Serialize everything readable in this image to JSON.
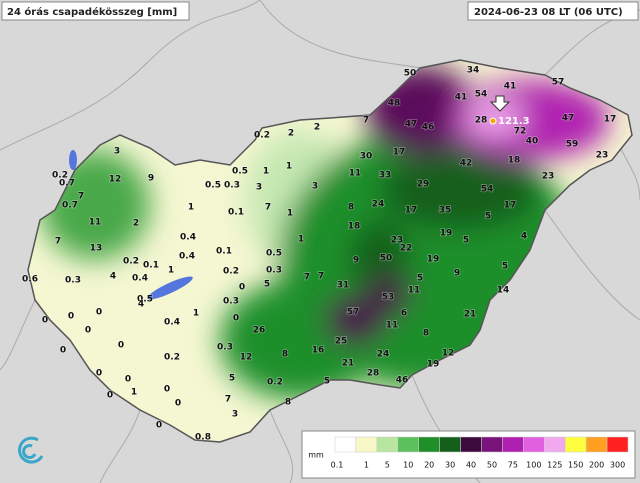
{
  "header": {
    "title": "24 órás csapadékösszeg [mm]",
    "date": "2024-06-23 08 LT (06 UTC)"
  },
  "max_value": "121.3",
  "legend": {
    "unit": "mm",
    "labels": [
      "0.1",
      "1",
      "5",
      "10",
      "20",
      "30",
      "40",
      "50",
      "75",
      "100",
      "125",
      "150",
      "200",
      "300"
    ]
  },
  "stations": [
    "50",
    "34",
    "54",
    "41",
    "57",
    "41",
    "48",
    "47",
    "46",
    "28",
    "47",
    "17",
    "72",
    "40",
    "59",
    "23",
    "42",
    "18",
    "54",
    "23",
    "29",
    "17",
    "30",
    "33",
    "11",
    "7",
    "17",
    "35",
    "5",
    "17",
    "24",
    "8",
    "18",
    "23",
    "22",
    "19",
    "5",
    "4",
    "9",
    "50",
    "19",
    "5",
    "9",
    "5",
    "7",
    "31",
    "53",
    "11",
    "14",
    "57",
    "6",
    "21",
    "11",
    "8",
    "26",
    "25",
    "24",
    "12",
    "16",
    "21",
    "19",
    "28",
    "46",
    "5",
    "8",
    "12",
    "0.3",
    "0.2",
    "7",
    "5",
    "3",
    "8",
    "0.2",
    "2",
    "2",
    "0.5",
    "1",
    "3",
    "1",
    "3",
    "0.5",
    "0.3",
    "1",
    "0.1",
    "7",
    "1",
    "1",
    "0.1",
    "0.3",
    "0.5",
    "0.2",
    "0",
    "5",
    "7",
    "0.3",
    "0",
    "0.4",
    "0.4",
    "1",
    "0.4",
    "0.5",
    "0.4",
    "1",
    "0.2",
    "4",
    "4",
    "3",
    "0.2",
    "0.7",
    "12",
    "9",
    "7",
    "0.7",
    "11",
    "2",
    "7",
    "13",
    "0.2",
    "0.1",
    "0.6",
    "0.3",
    "0",
    "0",
    "0",
    "0",
    "0",
    "0",
    "0",
    "0",
    "1",
    "0",
    "0",
    "0",
    "0.8",
    "0"
  ]
}
